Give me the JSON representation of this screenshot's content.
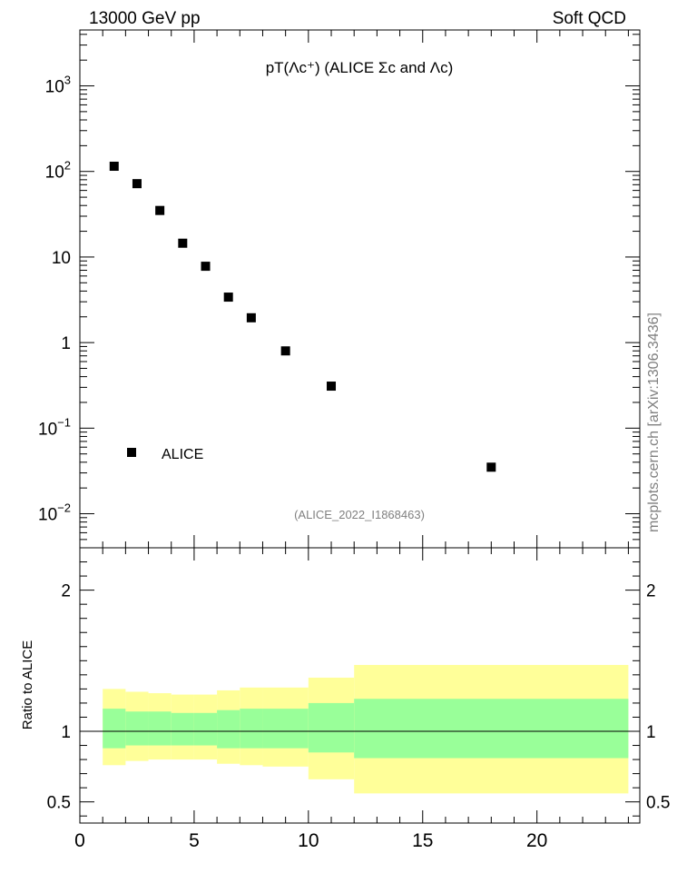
{
  "header": {
    "left": "13000 GeV pp",
    "right": "Soft QCD"
  },
  "side_label": "mcplots.cern.ch [arXiv:1306.3436]",
  "colors": {
    "marker": "#000000",
    "band_outer": "#ffff99",
    "band_inner": "#99ff99",
    "ratio_line": "#000000",
    "ref_text": "#808080"
  },
  "chart_data": [
    {
      "type": "scatter",
      "title": "pT(Λc⁺) (ALICE Σc and Λc)",
      "reference": "(ALICE_2022_I1868463)",
      "y_scale": "log",
      "xlim": [
        0,
        24.5
      ],
      "ylim": [
        0.004,
        4500
      ],
      "y_tick_labels": [
        "10^-2",
        "10^-1",
        "1",
        "10",
        "10^2",
        "10^3"
      ],
      "legend": {
        "entries": [
          "ALICE"
        ],
        "placement": "bottom-left"
      },
      "series": [
        {
          "name": "ALICE",
          "x": [
            1.5,
            2.5,
            3.5,
            4.5,
            5.5,
            6.5,
            7.5,
            9.0,
            11.0,
            18.0
          ],
          "y": [
            115,
            72,
            35,
            14.5,
            7.8,
            3.4,
            1.95,
            0.8,
            0.31,
            0.035
          ]
        }
      ]
    },
    {
      "type": "area",
      "ylabel": "Ratio to ALICE",
      "xlim": [
        0,
        24.5
      ],
      "ylim": [
        0.35,
        2.3
      ],
      "x_tick_labels": [
        "0",
        "5",
        "10",
        "15",
        "20"
      ],
      "y_tick_labels": [
        "0.5",
        "1",
        "2"
      ],
      "reference_line": 1,
      "bins": [
        [
          1,
          2
        ],
        [
          2,
          3
        ],
        [
          3,
          4
        ],
        [
          4,
          5
        ],
        [
          5,
          6
        ],
        [
          6,
          7
        ],
        [
          7,
          8
        ],
        [
          8,
          10
        ],
        [
          10,
          12
        ],
        [
          12,
          24
        ]
      ],
      "band_inner": {
        "low": [
          0.88,
          0.9,
          0.9,
          0.9,
          0.9,
          0.88,
          0.88,
          0.88,
          0.85,
          0.81
        ],
        "high": [
          1.16,
          1.14,
          1.14,
          1.13,
          1.13,
          1.15,
          1.16,
          1.16,
          1.2,
          1.23
        ]
      },
      "band_outer": {
        "low": [
          0.76,
          0.79,
          0.8,
          0.8,
          0.8,
          0.77,
          0.76,
          0.75,
          0.66,
          0.56
        ],
        "high": [
          1.3,
          1.28,
          1.27,
          1.26,
          1.26,
          1.29,
          1.31,
          1.31,
          1.38,
          1.47
        ]
      }
    }
  ]
}
